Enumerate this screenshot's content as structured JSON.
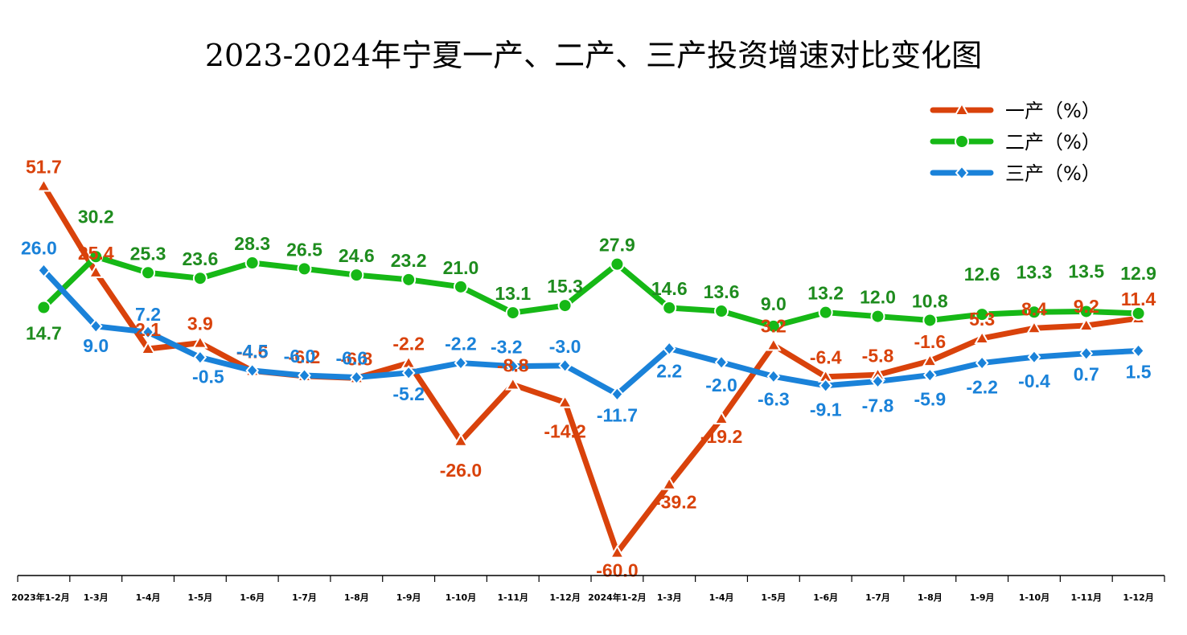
{
  "chart_data": {
    "type": "line",
    "title": "2023-2024年宁夏一产、二产、三产投资增速对比变化图",
    "categories": [
      "2023年1-2月",
      "1-3月",
      "1-4月",
      "1-5月",
      "1-6月",
      "1-7月",
      "1-8月",
      "1-9月",
      "1-10月",
      "1-11月",
      "1-12月",
      "2024年1-2月",
      "1-3月",
      "1-4月",
      "1-5月",
      "1-6月",
      "1-7月",
      "1-8月",
      "1-9月",
      "1-10月",
      "1-11月",
      "1-12月"
    ],
    "series": [
      {
        "name": "一产（%）",
        "color": "#D9420B",
        "marker": "triangle",
        "values": [
          51.7,
          25.4,
          2.1,
          3.9,
          -4.6,
          -6.2,
          -6.8,
          -2.2,
          -26.0,
          -8.8,
          -14.2,
          -60.0,
          -39.2,
          -19.2,
          3.2,
          -6.4,
          -5.8,
          -1.6,
          5.3,
          8.4,
          9.2,
          11.4
        ],
        "labels": [
          "51.7",
          "25.4",
          "2.1",
          "3.9",
          "-4.6",
          "-6.2",
          "-6.8",
          "-2.2",
          "-26.0",
          "-8.8",
          "-14.2",
          "-60.0",
          "-39.2",
          "-19.2",
          "3.2",
          "-6.4",
          "-5.8",
          "-1.6",
          "5.3",
          "8.4",
          "9.2",
          "11.4"
        ]
      },
      {
        "name": "二产（%）",
        "color": "#16B816",
        "label_color": "#1E8C1E",
        "marker": "circle",
        "values": [
          14.7,
          30.2,
          25.3,
          23.6,
          28.3,
          26.5,
          24.6,
          23.2,
          21.0,
          13.1,
          15.3,
          27.9,
          14.6,
          13.6,
          9.0,
          13.2,
          12.0,
          10.8,
          12.6,
          13.3,
          13.5,
          12.9
        ],
        "labels": [
          "14.7",
          "30.2",
          "25.3",
          "23.6",
          "28.3",
          "26.5",
          "24.6",
          "23.2",
          "21.0",
          "13.1",
          "15.3",
          "27.9",
          "14.6",
          "13.6",
          "9.0",
          "13.2",
          "12.0",
          "10.8",
          "12.6",
          "13.3",
          "13.5",
          "12.9"
        ]
      },
      {
        "name": "三产（%）",
        "color": "#1A82D9",
        "marker": "diamond",
        "values": [
          26.0,
          9.0,
          7.2,
          -0.5,
          -4.5,
          -6.0,
          -6.6,
          -5.2,
          -2.2,
          -3.2,
          -3.0,
          -11.7,
          2.2,
          -2.0,
          -6.3,
          -9.1,
          -7.8,
          -5.9,
          -2.2,
          -0.4,
          0.7,
          1.5
        ],
        "labels": [
          "26.0",
          "9.0",
          "7.2",
          "-0.5",
          "-4.5",
          "-6.0",
          "-6.6",
          "-5.2",
          "-2.2",
          "-3.2",
          "-3.0",
          "-11.7",
          "2.2",
          "-2.0",
          "-6.3",
          "-9.1",
          "-7.8",
          "-5.9",
          "-2.2",
          "-0.4",
          "0.7",
          "1.5"
        ]
      }
    ],
    "xlabel": "",
    "ylabel": "",
    "ylim": [
      -65,
      55
    ],
    "grid": false,
    "legend": "top-right"
  }
}
